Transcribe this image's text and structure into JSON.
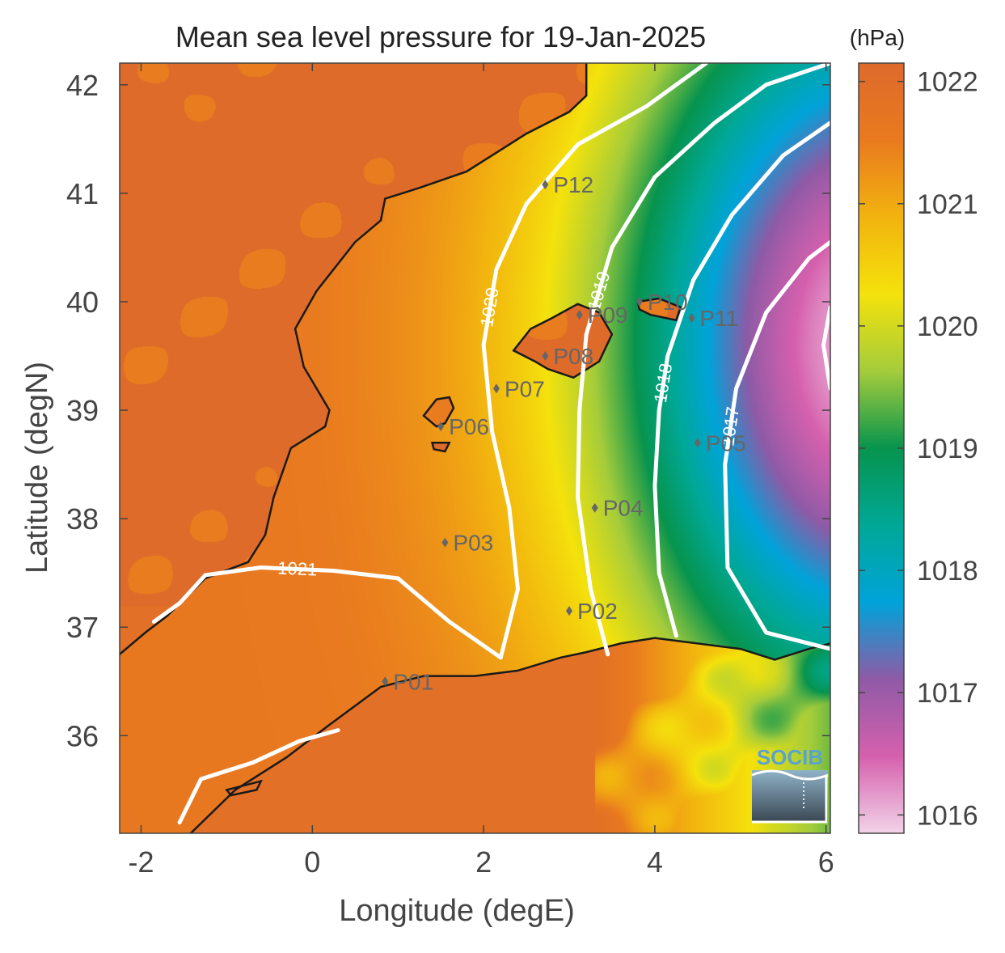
{
  "chart_data": {
    "type": "heatmap",
    "title": "Mean sea level pressure for 19-Jan-2025",
    "xlabel": "Longitude (degE)",
    "ylabel": "Latitude (degN)",
    "xlim": [
      -2.25,
      6.05
    ],
    "ylim": [
      35.1,
      42.2
    ],
    "xticks": [
      -2,
      0,
      2,
      4,
      6
    ],
    "yticks": [
      36,
      37,
      38,
      39,
      40,
      41,
      42
    ],
    "colorbar": {
      "unit": "(hPa)",
      "range": [
        1015.85,
        1022.15
      ],
      "ticks": [
        1016,
        1017,
        1018,
        1019,
        1020,
        1021,
        1022
      ],
      "colors": [
        "#f2d3e8",
        "#d560ad",
        "#8f5aa6",
        "#00a3d9",
        "#00a896",
        "#07944e",
        "#a4cc3b",
        "#f4e20c",
        "#f2b30f",
        "#e97a1f",
        "#dd6a2b"
      ]
    },
    "contours": [
      {
        "level": 1021,
        "label": "1021",
        "points": [
          [
            -1.85,
            37.05
          ],
          [
            -1.55,
            37.22
          ],
          [
            -1.25,
            37.48
          ],
          [
            -0.6,
            37.55
          ],
          [
            0.25,
            37.52
          ],
          [
            1.0,
            37.45
          ],
          [
            1.6,
            37.05
          ],
          [
            2.2,
            36.72
          ]
        ]
      },
      {
        "level": 1020,
        "label": "1020",
        "points": [
          [
            2.2,
            36.72
          ],
          [
            2.4,
            37.35
          ],
          [
            2.3,
            38.1
          ],
          [
            2.1,
            38.8
          ],
          [
            2.0,
            39.6
          ],
          [
            2.15,
            40.3
          ],
          [
            2.5,
            40.9
          ],
          [
            3.1,
            41.45
          ],
          [
            3.9,
            41.8
          ],
          [
            4.6,
            42.2
          ]
        ]
      },
      {
        "level": 1019,
        "label": "1019",
        "points": [
          [
            3.45,
            36.75
          ],
          [
            3.25,
            37.35
          ],
          [
            3.1,
            38.2
          ],
          [
            3.12,
            39.0
          ],
          [
            3.2,
            39.7
          ],
          [
            3.5,
            40.5
          ],
          [
            4.0,
            41.15
          ],
          [
            4.7,
            41.65
          ],
          [
            5.3,
            42.0
          ],
          [
            6.05,
            42.2
          ]
        ]
      },
      {
        "level": 1018,
        "label": "1018",
        "points": [
          [
            4.25,
            36.92
          ],
          [
            4.05,
            37.5
          ],
          [
            4.0,
            38.3
          ],
          [
            4.05,
            39.0
          ],
          [
            4.15,
            39.5
          ],
          [
            4.45,
            40.2
          ],
          [
            4.9,
            40.8
          ],
          [
            5.5,
            41.35
          ],
          [
            6.05,
            41.65
          ]
        ]
      },
      {
        "level": 1017,
        "label": "1017",
        "points": [
          [
            6.05,
            36.8
          ],
          [
            5.3,
            36.95
          ],
          [
            4.85,
            37.55
          ],
          [
            4.82,
            38.5
          ],
          [
            4.95,
            39.2
          ],
          [
            5.3,
            39.9
          ],
          [
            5.8,
            40.4
          ],
          [
            6.05,
            40.55
          ]
        ]
      },
      {
        "level": 1016,
        "label": "",
        "points": [
          [
            6.05,
            39.95
          ],
          [
            5.97,
            39.6
          ],
          [
            6.05,
            39.2
          ]
        ]
      },
      {
        "level": 1021,
        "label": "",
        "points": [
          [
            -1.55,
            35.2
          ],
          [
            -1.3,
            35.6
          ],
          [
            -0.7,
            35.75
          ],
          [
            -0.15,
            35.95
          ],
          [
            0.3,
            36.05
          ]
        ]
      }
    ],
    "stations": [
      {
        "name": "P01",
        "lon": 0.85,
        "lat": 36.5
      },
      {
        "name": "P02",
        "lon": 3.0,
        "lat": 37.15
      },
      {
        "name": "P03",
        "lon": 1.55,
        "lat": 37.78
      },
      {
        "name": "P04",
        "lon": 3.3,
        "lat": 38.1
      },
      {
        "name": "P05",
        "lon": 4.5,
        "lat": 38.7
      },
      {
        "name": "P06",
        "lon": 1.5,
        "lat": 38.85
      },
      {
        "name": "P07",
        "lon": 2.15,
        "lat": 39.2
      },
      {
        "name": "P08",
        "lon": 2.72,
        "lat": 39.5
      },
      {
        "name": "P09",
        "lon": 3.12,
        "lat": 39.88
      },
      {
        "name": "P10",
        "lon": 3.82,
        "lat": 40.0
      },
      {
        "name": "P11",
        "lon": 4.43,
        "lat": 39.85
      },
      {
        "name": "P12",
        "lon": 2.72,
        "lat": 41.08
      }
    ],
    "coastlines": [
      [
        [
          -2.25,
          36.75
        ],
        [
          -1.95,
          36.95
        ],
        [
          -1.7,
          37.1
        ],
        [
          -1.25,
          37.45
        ],
        [
          -0.75,
          37.6
        ],
        [
          -0.55,
          37.85
        ],
        [
          -0.45,
          38.2
        ],
        [
          -0.25,
          38.65
        ],
        [
          0.15,
          38.85
        ],
        [
          0.2,
          39.0
        ],
        [
          -0.1,
          39.4
        ],
        [
          -0.2,
          39.75
        ],
        [
          0.05,
          40.1
        ],
        [
          0.5,
          40.55
        ],
        [
          0.8,
          40.75
        ],
        [
          0.85,
          40.95
        ],
        [
          1.25,
          41.05
        ],
        [
          1.8,
          41.2
        ],
        [
          2.2,
          41.4
        ],
        [
          2.5,
          41.55
        ],
        [
          3.0,
          41.75
        ],
        [
          3.2,
          41.9
        ],
        [
          3.2,
          42.2
        ]
      ],
      [
        [
          -1.55,
          35.0
        ],
        [
          -0.9,
          35.5
        ],
        [
          -0.3,
          35.8
        ],
        [
          0.2,
          36.1
        ],
        [
          0.8,
          36.45
        ],
        [
          1.3,
          36.55
        ],
        [
          1.9,
          36.55
        ],
        [
          2.4,
          36.6
        ],
        [
          2.9,
          36.72
        ],
        [
          3.2,
          36.77
        ],
        [
          3.6,
          36.85
        ],
        [
          4.0,
          36.9
        ],
        [
          4.5,
          36.85
        ],
        [
          5.0,
          36.8
        ],
        [
          5.4,
          36.7
        ],
        [
          5.8,
          36.8
        ],
        [
          6.05,
          36.85
        ]
      ]
    ],
    "islands": [
      {
        "name": "",
        "points": [
          [
            2.35,
            39.55
          ],
          [
            2.55,
            39.75
          ],
          [
            2.8,
            39.85
          ],
          [
            3.1,
            39.98
          ],
          [
            3.35,
            39.9
          ],
          [
            3.5,
            39.7
          ],
          [
            3.35,
            39.45
          ],
          [
            3.05,
            39.3
          ],
          [
            2.75,
            39.38
          ],
          [
            2.6,
            39.45
          ]
        ]
      },
      {
        "name": "",
        "points": [
          [
            3.8,
            40.0
          ],
          [
            4.05,
            40.03
          ],
          [
            4.3,
            39.95
          ],
          [
            4.25,
            39.83
          ],
          [
            3.95,
            39.88
          ],
          [
            3.82,
            39.93
          ]
        ]
      },
      {
        "name": "",
        "points": [
          [
            1.3,
            38.95
          ],
          [
            1.45,
            39.1
          ],
          [
            1.6,
            39.12
          ],
          [
            1.65,
            39.02
          ],
          [
            1.55,
            38.88
          ],
          [
            1.45,
            38.85
          ]
        ]
      },
      {
        "name": "",
        "points": [
          [
            1.4,
            38.7
          ],
          [
            1.6,
            38.7
          ],
          [
            1.55,
            38.62
          ],
          [
            1.42,
            38.64
          ]
        ]
      },
      {
        "name": "",
        "points": [
          [
            -1.0,
            35.5
          ],
          [
            -0.6,
            35.58
          ],
          [
            -0.65,
            35.5
          ],
          [
            -0.95,
            35.45
          ]
        ]
      }
    ],
    "logo_text": "SOCIB"
  }
}
